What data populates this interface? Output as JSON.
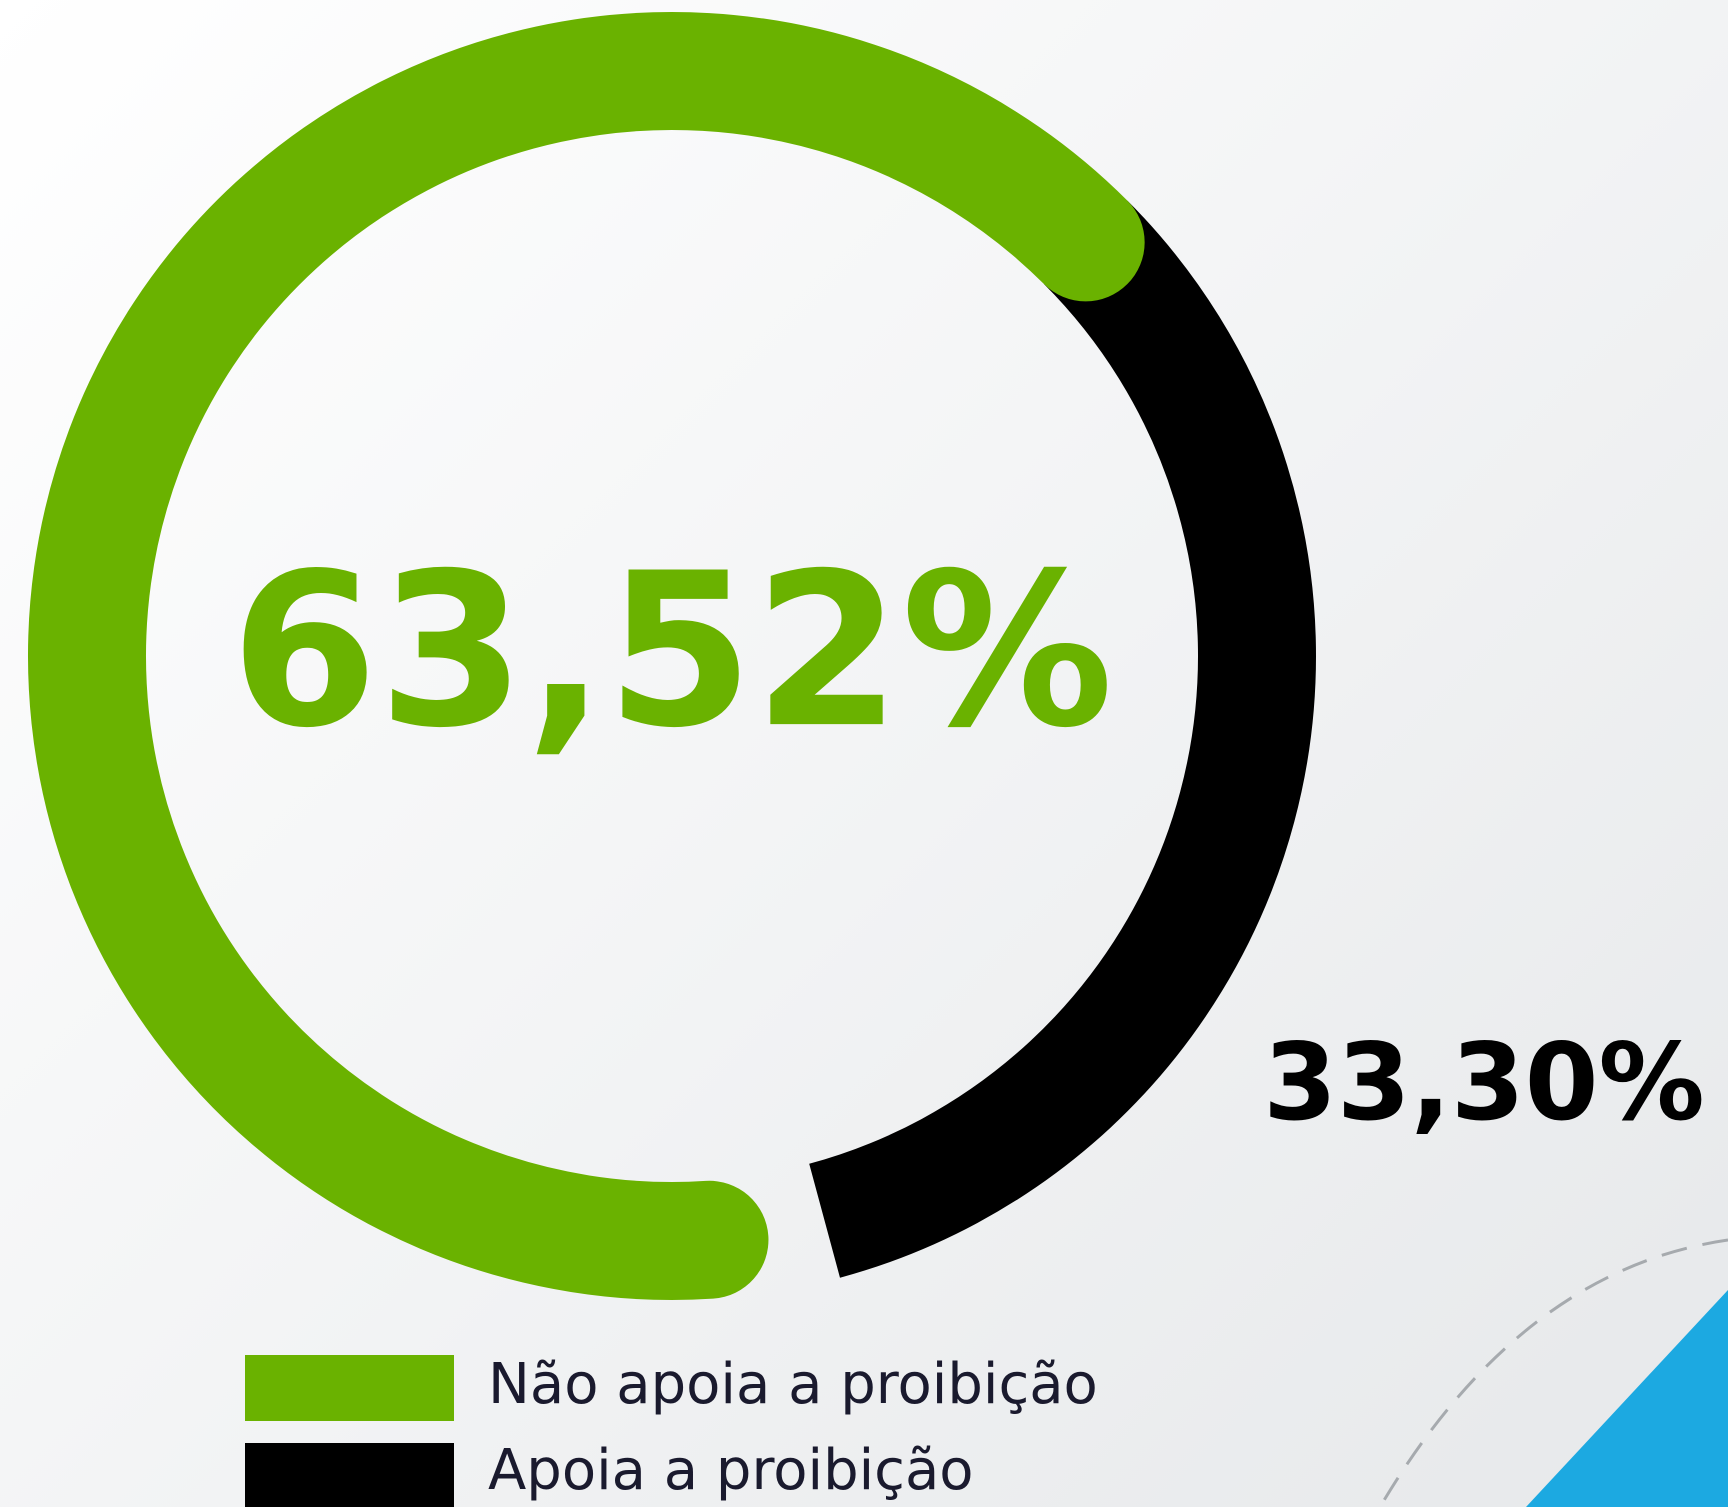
{
  "chart_data": {
    "type": "donut",
    "categories": [
      "Não apoia a proibição",
      "Apoia a proibição"
    ],
    "values": [
      63.52,
      33.3
    ],
    "value_labels": [
      "63,52%",
      "33,30%"
    ],
    "colors": [
      "#6ab200",
      "#000000"
    ]
  }
}
